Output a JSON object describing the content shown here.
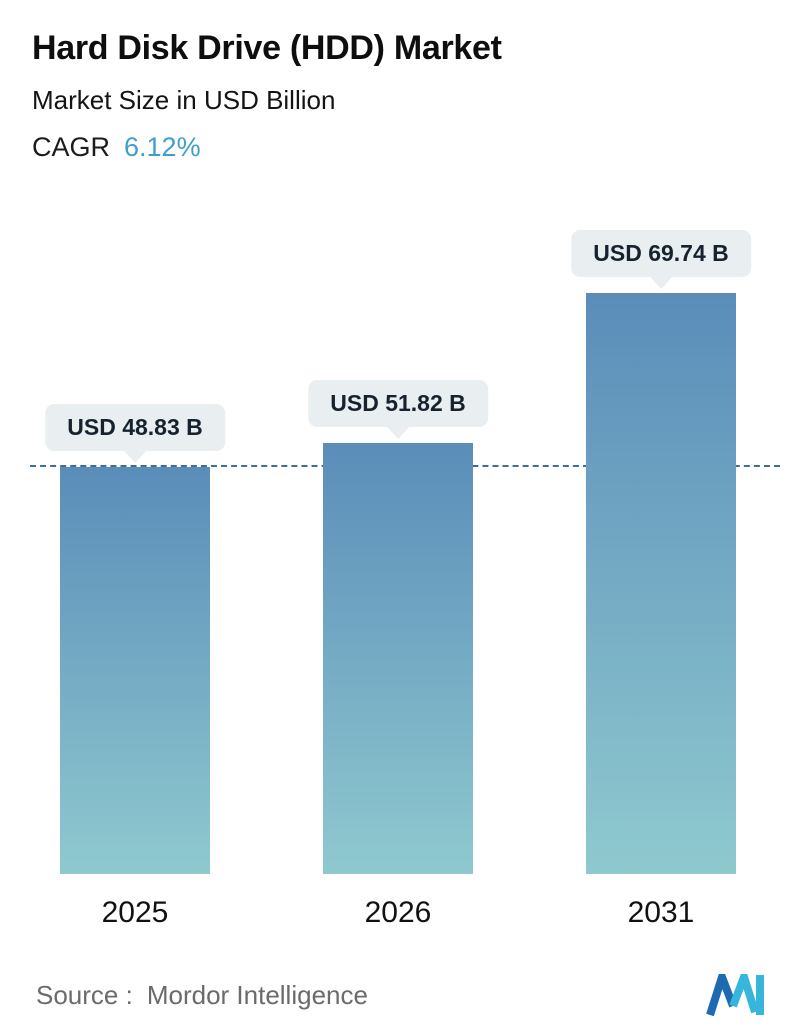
{
  "header": {
    "title": "Hard Disk Drive (HDD) Market",
    "subtitle": "Market Size in USD Billion",
    "cagr_label": "CAGR",
    "cagr_value": "6.12%"
  },
  "chart_data": {
    "type": "bar",
    "title": "Hard Disk Drive (HDD) Market",
    "subtitle": "Market Size in USD Billion",
    "categories": [
      "2025",
      "2026",
      "2031"
    ],
    "values": [
      48.83,
      51.82,
      69.74
    ],
    "value_labels": [
      "USD 48.83 B",
      "USD 51.82 B",
      "USD 69.74 B"
    ],
    "ylim": [
      0,
      72
    ],
    "baseline_value": 48.83,
    "legend": "none",
    "grid": "single horizontal dashed line at first bar value",
    "colors": {
      "bar_top": "#5a8db9",
      "bar_bottom": "#8fc9cf",
      "tooltip_bg": "#e9eff1",
      "baseline": "#3d6f96",
      "accent": "#3f9fca"
    }
  },
  "footer": {
    "source_label": "Source :",
    "source_value": "Mordor Intelligence"
  }
}
